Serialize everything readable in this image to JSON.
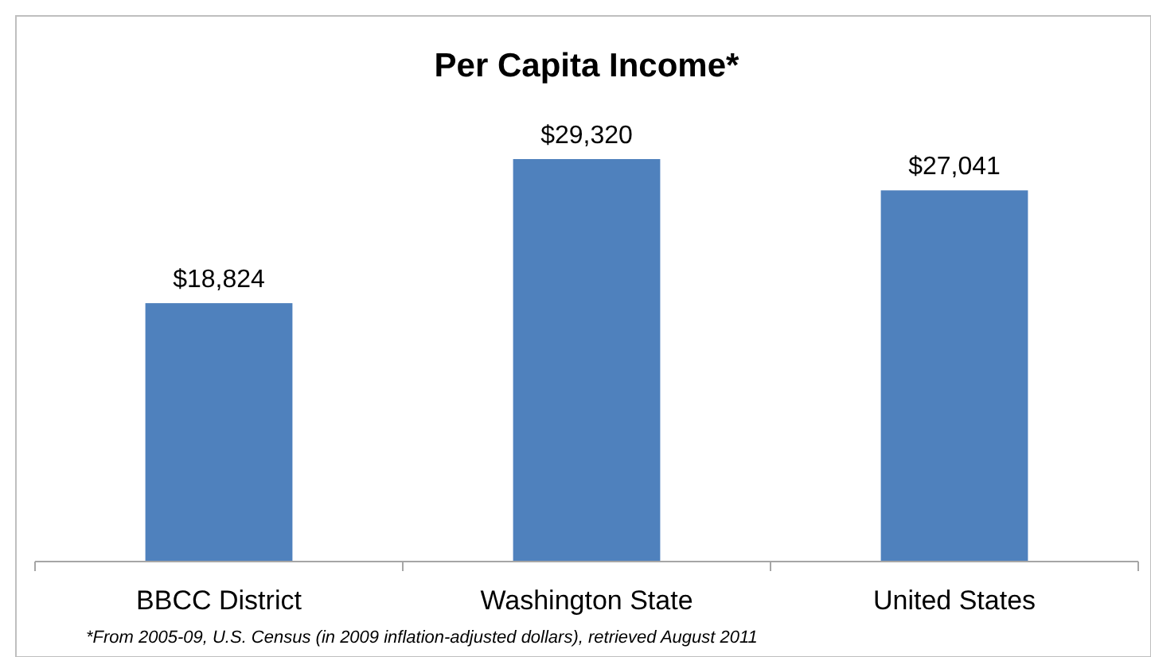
{
  "chart_data": {
    "type": "bar",
    "title": "Per Capita Income*",
    "categories": [
      "BBCC District",
      "Washington State",
      "United States"
    ],
    "values": [
      18824,
      29320,
      27041
    ],
    "value_labels": [
      "$18,824",
      "$29,320",
      "$27,041"
    ],
    "color": "#4f81bd",
    "annotations": [
      "*From 2005-09, U.S. Census (in 2009 inflation-adjusted dollars), retrieved August 2011"
    ]
  }
}
